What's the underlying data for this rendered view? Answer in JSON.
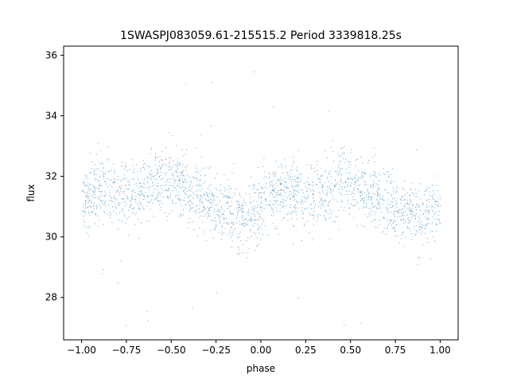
{
  "chart_data": {
    "type": "scatter",
    "title": "1SWASPJ083059.61-215515.2 Period 3339818.25s",
    "xlabel": "phase",
    "ylabel": "flux",
    "xlim": [
      -1.1,
      1.1
    ],
    "ylim": [
      26.6,
      36.3
    ],
    "x_ticks": [
      -1.0,
      -0.75,
      -0.5,
      -0.25,
      0.0,
      0.25,
      0.5,
      0.75,
      1.0
    ],
    "x_tick_labels": [
      "−1.00",
      "−0.75",
      "−0.50",
      "−0.25",
      "0.00",
      "0.25",
      "0.50",
      "0.75",
      "1.00"
    ],
    "y_ticks": [
      28,
      30,
      32,
      34,
      36
    ],
    "y_tick_labels": [
      "28",
      "30",
      "32",
      "34",
      "36"
    ],
    "grid": false,
    "legend": "none",
    "marker_color": "#1f77b4",
    "series": [
      {
        "phase_range": [
          -1.0,
          1.0
        ],
        "approx_points": 16000,
        "flux_profile": {
          "phase": [
            -1.0,
            -0.9,
            -0.8,
            -0.7,
            -0.6,
            -0.5,
            -0.4,
            -0.3,
            -0.2,
            -0.1,
            0.0,
            0.1,
            0.2,
            0.3,
            0.4,
            0.5,
            0.6,
            0.7,
            0.8,
            0.9,
            1.0
          ],
          "median_flux": [
            31.3,
            31.6,
            31.4,
            31.3,
            31.8,
            31.9,
            31.5,
            31.1,
            30.9,
            30.6,
            31.0,
            31.6,
            31.4,
            31.3,
            31.8,
            31.9,
            31.5,
            31.1,
            30.9,
            30.7,
            31.2
          ],
          "spread": [
            1.0,
            1.1,
            1.0,
            1.1,
            1.0,
            1.0,
            1.0,
            1.0,
            1.0,
            1.0,
            1.0,
            1.0,
            1.0,
            1.1,
            1.0,
            1.0,
            1.0,
            1.0,
            1.0,
            1.0,
            1.0
          ]
        },
        "outlier_flux_range": [
          27.0,
          35.7
        ]
      }
    ]
  }
}
